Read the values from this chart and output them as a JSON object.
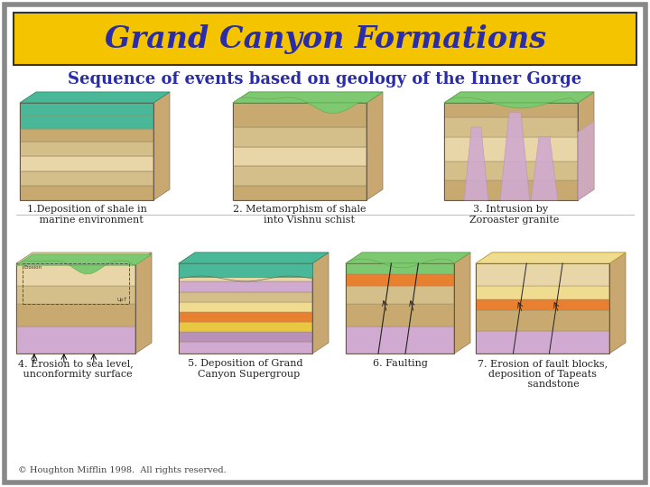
{
  "title": "Grand Canyon Formations",
  "subtitle": "Sequence of events based on geology of the Inner Gorge",
  "title_bg": "#F5C400",
  "title_color": "#2B2DA8",
  "subtitle_color": "#2B2DA8",
  "bg_color": "#FFFFFF",
  "outer_border_color": "#888888",
  "inner_border_color": "#333333",
  "caption": "© Houghton Mifflin 1998.  All rights reserved.",
  "labels": [
    "1.Deposition of shale in\n   marine environment",
    "2. Metamorphism of shale\n      into Vishnu schist",
    "3. Intrusion by\n  Zoroaster granite",
    "4. Erosion to sea level,\n unconformity surface",
    "5. Deposition of Grand\n  Canyon Supergroup",
    "6. Faulting",
    "7. Erosion of fault blocks,\ndeposition of Tapeats\n       sandstone"
  ],
  "label_fontsize": 8,
  "title_fontsize": 24,
  "subtitle_fontsize": 13,
  "caption_fontsize": 7
}
